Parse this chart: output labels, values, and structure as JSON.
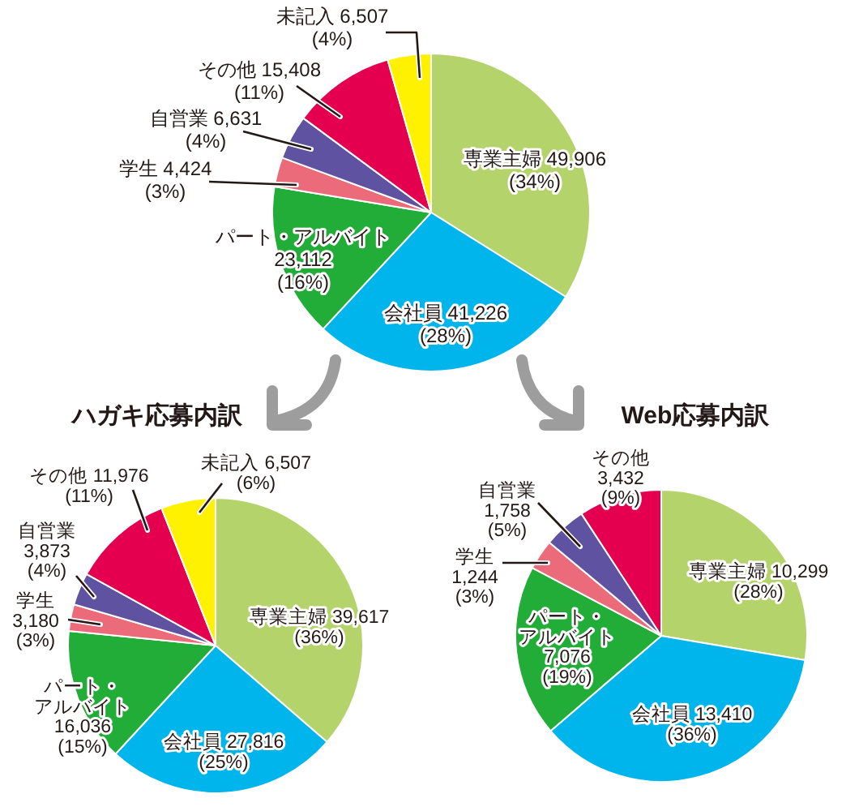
{
  "chart_data": [
    {
      "type": "pie",
      "categories": [
        "専業主婦",
        "会社員",
        "パート・アルバイト",
        "学生",
        "自営業",
        "その他",
        "未記入"
      ],
      "values": [
        49906,
        41226,
        23112,
        4424,
        6631,
        15408,
        6507
      ],
      "colors": [
        "#b5d36b",
        "#00b5ec",
        "#22ac38",
        "#ec6b7a",
        "#5f52a0",
        "#e4004f",
        "#fff100"
      ],
      "value_labels": [
        "49,906\n(34%)",
        "41,226\n(28%)",
        "23,112\n(16%)",
        "4,424\n(3%)",
        "6,631\n(4%)",
        "15,408\n(11%)",
        "6,507\n(4%)"
      ]
    },
    {
      "type": "pie",
      "title": "ハガキ応募内訳",
      "categories": [
        "専業主婦",
        "会社員",
        "パート・アルバイト",
        "学生",
        "自営業",
        "その他",
        "未記入"
      ],
      "values": [
        39617,
        27816,
        16036,
        3180,
        3873,
        11976,
        6507
      ],
      "colors": [
        "#b5d36b",
        "#00b5ec",
        "#22ac38",
        "#ec6b7a",
        "#5f52a0",
        "#e4004f",
        "#fff100"
      ],
      "value_labels": [
        "39,617\n(36%)",
        "27,816\n(25%)",
        "16,036\n(15%)",
        "3,180\n(3%)",
        "3,873\n(4%)",
        "11,976\n(11%)",
        "6,507\n(6%)"
      ]
    },
    {
      "type": "pie",
      "title": "Web応募内訳",
      "categories": [
        "専業主婦",
        "会社員",
        "パート・アルバイト",
        "学生",
        "自営業",
        "その他"
      ],
      "values": [
        10299,
        13410,
        7076,
        1244,
        1758,
        3432
      ],
      "colors": [
        "#b5d36b",
        "#00b5ec",
        "#22ac38",
        "#ec6b7a",
        "#5f52a0",
        "#e4004f"
      ],
      "value_labels": [
        "10,299\n(28%)",
        "13,410\n(36%)",
        "7,076\n(19%)",
        "1,244\n(3%)",
        "1,758\n(5%)",
        "3,432\n(9%)"
      ]
    }
  ]
}
